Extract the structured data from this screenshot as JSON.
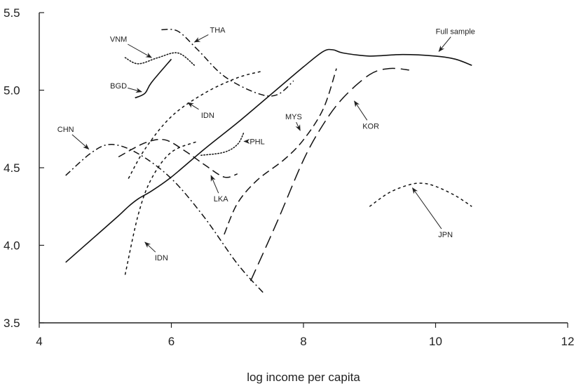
{
  "chart_data": {
    "type": "line",
    "title": "",
    "xlabel": "log income per capita",
    "ylabel": "",
    "xlim": [
      4,
      12
    ],
    "ylim": [
      3.5,
      5.5
    ],
    "xticks": [
      4,
      6,
      8,
      10,
      12
    ],
    "yticks": [
      3.5,
      4.0,
      4.5,
      5.0,
      5.5
    ],
    "xtick_labels": [
      "4",
      "6",
      "8",
      "10",
      "12"
    ],
    "ytick_labels": [
      "3.5",
      "4.0",
      "4.5",
      "5.0",
      "5.5"
    ],
    "grid": false,
    "legend": "none",
    "series": [
      {
        "name": "Full sample",
        "style": "solid",
        "x": [
          4.4,
          4.8,
          5.2,
          5.35,
          5.5,
          5.7,
          6.0,
          6.5,
          7.0,
          7.5,
          8.0,
          8.3,
          8.45,
          8.6,
          9.0,
          9.5,
          10.0,
          10.3,
          10.55
        ],
        "y": [
          3.89,
          4.04,
          4.19,
          4.25,
          4.3,
          4.35,
          4.44,
          4.62,
          4.79,
          4.97,
          5.15,
          5.25,
          5.26,
          5.24,
          5.22,
          5.23,
          5.22,
          5.2,
          5.16
        ]
      },
      {
        "name": "VNM",
        "style": "dotted",
        "x": [
          5.3,
          5.5,
          5.8,
          6.1,
          6.35
        ],
        "y": [
          5.21,
          5.17,
          5.21,
          5.24,
          5.16
        ]
      },
      {
        "name": "THA",
        "style": "dashdot",
        "x": [
          5.85,
          6.1,
          6.4,
          6.8,
          7.3,
          7.6,
          7.85
        ],
        "y": [
          5.39,
          5.38,
          5.26,
          5.09,
          4.98,
          4.97,
          5.06
        ]
      },
      {
        "name": "BGD",
        "style": "solid",
        "x": [
          5.45,
          5.6,
          5.7,
          6.0
        ],
        "y": [
          4.95,
          4.98,
          5.05,
          5.2
        ]
      },
      {
        "name": "IDN",
        "style": "dashed-short",
        "x": [
          5.35,
          5.6,
          6.0,
          6.5,
          7.0,
          7.35
        ],
        "y": [
          4.43,
          4.62,
          4.83,
          4.98,
          5.08,
          5.12
        ]
      },
      {
        "name": "CHN",
        "style": "dashdot",
        "x": [
          4.4,
          4.8,
          5.1,
          5.5,
          6.0,
          6.5,
          7.0,
          7.4
        ],
        "y": [
          4.45,
          4.6,
          4.65,
          4.59,
          4.43,
          4.18,
          3.88,
          3.69
        ]
      },
      {
        "name": "PHL",
        "style": "dotted",
        "x": [
          6.45,
          6.8,
          7.0,
          7.1
        ],
        "y": [
          4.58,
          4.6,
          4.65,
          4.73
        ]
      },
      {
        "name": "LKA",
        "style": "dashed-medium",
        "x": [
          5.2,
          5.6,
          5.9,
          6.2,
          6.5,
          6.8,
          7.0
        ],
        "y": [
          4.57,
          4.66,
          4.68,
          4.61,
          4.52,
          4.44,
          4.46
        ]
      },
      {
        "name": "IDN",
        "style": "dashed-short",
        "x": [
          5.3,
          5.5,
          5.7,
          6.0,
          6.4
        ],
        "y": [
          3.81,
          4.2,
          4.43,
          4.6,
          4.67
        ]
      },
      {
        "name": "MYS",
        "style": "dashed-medium",
        "x": [
          6.8,
          7.0,
          7.3,
          7.7,
          8.0,
          8.3,
          8.5
        ],
        "y": [
          4.07,
          4.27,
          4.42,
          4.55,
          4.68,
          4.88,
          5.14
        ]
      },
      {
        "name": "KOR",
        "style": "dashed-long",
        "x": [
          7.2,
          7.6,
          8.0,
          8.3,
          8.6,
          9.0,
          9.3,
          9.6
        ],
        "y": [
          3.77,
          4.15,
          4.55,
          4.78,
          4.95,
          5.1,
          5.14,
          5.13
        ]
      },
      {
        "name": "JPN",
        "style": "dashed-short",
        "x": [
          9.0,
          9.3,
          9.6,
          9.8,
          10.0,
          10.3,
          10.55
        ],
        "y": [
          4.25,
          4.34,
          4.39,
          4.4,
          4.38,
          4.32,
          4.25
        ]
      }
    ],
    "annotations": [
      {
        "text": "Full sample",
        "x": 10.3,
        "y": 5.38,
        "ax": 10.05,
        "ay": 5.25
      },
      {
        "text": "VNM",
        "x": 5.2,
        "y": 5.33,
        "ax": 5.7,
        "ay": 5.21
      },
      {
        "text": "THA",
        "x": 6.7,
        "y": 5.39,
        "ax": 6.35,
        "ay": 5.31
      },
      {
        "text": "BGD",
        "x": 5.2,
        "y": 5.03,
        "ax": 5.55,
        "ay": 4.99
      },
      {
        "text": "IDN",
        "x": 6.55,
        "y": 4.84,
        "ax": 6.25,
        "ay": 4.92
      },
      {
        "text": "CHN",
        "x": 4.4,
        "y": 4.75,
        "ax": 4.75,
        "ay": 4.62
      },
      {
        "text": "PHL",
        "x": 7.3,
        "y": 4.67,
        "ax": 7.1,
        "ay": 4.67
      },
      {
        "text": "LKA",
        "x": 6.75,
        "y": 4.3,
        "ax": 6.6,
        "ay": 4.45
      },
      {
        "text": "IDN",
        "x": 5.85,
        "y": 3.92,
        "ax": 5.6,
        "ay": 4.02
      },
      {
        "text": "MYS",
        "x": 7.85,
        "y": 4.83,
        "ax": 7.95,
        "ay": 4.74
      },
      {
        "text": "KOR",
        "x": 9.02,
        "y": 4.77,
        "ax": 8.77,
        "ay": 4.93
      },
      {
        "text": "JPN",
        "x": 10.15,
        "y": 4.07,
        "ax": 9.65,
        "ay": 4.37
      }
    ]
  }
}
